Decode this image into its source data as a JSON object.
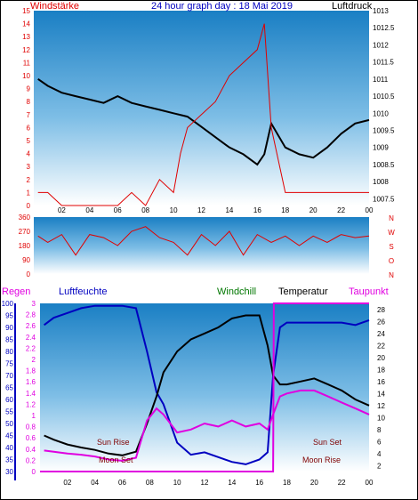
{
  "chart_data": [
    {
      "type": "line",
      "panel": "wind-pressure",
      "title": "24 hour graph day : 18 Mai 2019",
      "left_label": "Windstärke",
      "right_label": "Luftdruck",
      "x_ticks": [
        "02",
        "04",
        "06",
        "08",
        "10",
        "12",
        "14",
        "16",
        "18",
        "20",
        "22",
        "00"
      ],
      "left_ticks": [
        "0",
        "1",
        "2",
        "3",
        "4",
        "5",
        "6",
        "7",
        "8",
        "9",
        "10",
        "11",
        "12",
        "13",
        "14",
        "15"
      ],
      "right_ticks": [
        "1007.5",
        "1008",
        "1008.5",
        "1009",
        "1009.5",
        "1010",
        "1010.5",
        "1011",
        "1011.5",
        "1012",
        "1012.5",
        "1013"
      ],
      "ylim_left": [
        0,
        15
      ],
      "ylim_right": [
        1007.3,
        1013
      ],
      "series": [
        {
          "name": "Luftdruck",
          "color": "#000000",
          "x": [
            0.3,
            1,
            2,
            3,
            4,
            5,
            6,
            7,
            8,
            9,
            10,
            11,
            12,
            13,
            14,
            15,
            16,
            16.5,
            17,
            18,
            19,
            20,
            21,
            22,
            23,
            24
          ],
          "values": [
            1011.0,
            1010.8,
            1010.6,
            1010.5,
            1010.4,
            1010.3,
            1010.5,
            1010.3,
            1010.2,
            1010.1,
            1010.0,
            1009.9,
            1009.6,
            1009.3,
            1009.0,
            1008.8,
            1008.5,
            1008.8,
            1009.7,
            1009.0,
            1008.8,
            1008.7,
            1009.0,
            1009.4,
            1009.7,
            1009.8
          ]
        },
        {
          "name": "Windstärke",
          "color": "#e00000",
          "x": [
            0.3,
            1,
            2,
            3,
            4,
            5,
            6,
            7,
            8,
            9,
            10,
            10.5,
            11,
            12,
            13,
            14,
            15,
            16,
            16.5,
            17,
            18,
            19,
            20,
            21,
            22,
            23,
            24
          ],
          "values": [
            1,
            1,
            0,
            0,
            0,
            0,
            0,
            1,
            0,
            2,
            1,
            4,
            6,
            7,
            8,
            10,
            11,
            12,
            14,
            6,
            1,
            1,
            1,
            1,
            1,
            1,
            1
          ]
        }
      ]
    },
    {
      "type": "line",
      "panel": "wind-direction",
      "right_label_letters": [
        "N",
        "W",
        "S",
        "O",
        "N"
      ],
      "left_ticks": [
        "0",
        "90",
        "180",
        "270",
        "360"
      ],
      "ylim": [
        0,
        360
      ],
      "series": [
        {
          "color": "#e00000",
          "x": [
            0.3,
            1,
            2,
            3,
            4,
            5,
            6,
            7,
            8,
            9,
            10,
            11,
            12,
            13,
            14,
            15,
            16,
            17,
            18,
            19,
            20,
            21,
            22,
            23,
            24
          ],
          "values": [
            240,
            200,
            250,
            120,
            250,
            230,
            180,
            270,
            300,
            230,
            200,
            120,
            250,
            180,
            270,
            120,
            250,
            200,
            240,
            180,
            240,
            200,
            250,
            230,
            240
          ]
        }
      ]
    },
    {
      "type": "line",
      "panel": "rain-humidity-temperature",
      "legend": [
        "Regen",
        "Luftfeuchte",
        "Windchill",
        "Temperatur",
        "Taupunkt"
      ],
      "legend_colors": [
        "#e000e0",
        "#0000c0",
        "#007700",
        "#000000",
        "#e000e0"
      ],
      "rain_ticks": [
        "0",
        "0.2",
        "0.4",
        "0.6",
        "0.8",
        "1",
        "1.2",
        "1.4",
        "1.6",
        "1.8",
        "2",
        "2.2",
        "2.4",
        "2.6",
        "2.8",
        "3"
      ],
      "humidity_ticks": [
        "30",
        "35",
        "40",
        "45",
        "50",
        "55",
        "60",
        "65",
        "70",
        "75",
        "80",
        "85",
        "90",
        "95",
        "100"
      ],
      "temp_ticks": [
        "2",
        "4",
        "6",
        "8",
        "10",
        "12",
        "14",
        "16",
        "18",
        "20",
        "22",
        "24",
        "26",
        "28"
      ],
      "annotations": [
        {
          "text": "Sun Rise",
          "x": 5.7,
          "color": "#800000"
        },
        {
          "text": "Moon Set",
          "x": 6.0,
          "color": "#800000"
        },
        {
          "text": "Sun Set",
          "x": 20.7,
          "color": "#800000"
        },
        {
          "text": "Moon Rise",
          "x": 20.2,
          "color": "#800000"
        }
      ],
      "ylim_humidity": [
        30,
        100
      ],
      "ylim_temp": [
        1,
        29
      ],
      "ylim_rain": [
        0,
        3
      ],
      "series": [
        {
          "name": "Luftfeuchte",
          "color": "#0000c0",
          "x": [
            0.3,
            1,
            2,
            3,
            4,
            5,
            6,
            7,
            7.8,
            8.5,
            9,
            10,
            11,
            12,
            13,
            14,
            15,
            16,
            16.6,
            17,
            17.5,
            18,
            19,
            20,
            21,
            22,
            23,
            24
          ],
          "values": [
            91,
            94,
            96,
            98,
            99,
            99,
            99,
            98,
            80,
            63,
            58,
            42,
            37,
            38,
            36,
            34,
            33,
            35,
            38,
            70,
            90,
            92,
            92,
            92,
            92,
            92,
            91,
            93
          ]
        },
        {
          "name": "Temperatur",
          "color": "#000000",
          "x": [
            0.3,
            1,
            2,
            3,
            4,
            5,
            6,
            7,
            7.8,
            8.5,
            9,
            10,
            11,
            12,
            13,
            14,
            15,
            16,
            16.6,
            17,
            17.5,
            18,
            19,
            20,
            21,
            22,
            23,
            24
          ],
          "values": [
            7,
            6.3,
            5.5,
            5.0,
            4.6,
            4.0,
            3.7,
            4.3,
            9.0,
            13.5,
            17.5,
            21,
            23,
            24,
            25,
            26.5,
            27,
            27,
            22,
            17,
            15.5,
            15.5,
            16,
            16.5,
            15.5,
            14.5,
            13,
            12
          ]
        },
        {
          "name": "Taupunkt",
          "color": "#e000e0",
          "x": [
            0.3,
            1,
            2,
            3,
            4,
            5,
            6,
            7,
            7.8,
            8.5,
            9,
            10,
            11,
            12,
            13,
            14,
            15,
            16,
            16.6,
            17,
            17.5,
            18,
            19,
            20,
            21,
            22,
            23,
            24
          ],
          "values": [
            4.5,
            4.3,
            4.0,
            3.8,
            3.5,
            3.0,
            2.8,
            3.3,
            9.5,
            11.5,
            10.5,
            7.5,
            8.0,
            9.0,
            8.5,
            9.5,
            8.5,
            9.0,
            8.0,
            10.5,
            13.5,
            14.0,
            14.5,
            14.5,
            13.5,
            12.5,
            11.5,
            10.5
          ]
        },
        {
          "name": "Regen",
          "color": "#e000e0",
          "x": [
            0,
            17,
            17.05,
            24
          ],
          "values": [
            0,
            0,
            3,
            3
          ]
        }
      ]
    }
  ]
}
